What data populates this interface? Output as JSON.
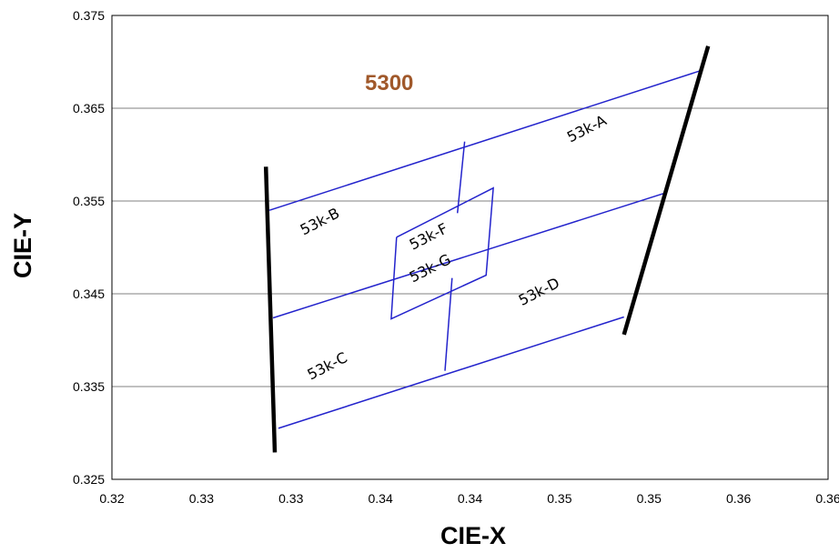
{
  "chart_data": {
    "type": "line",
    "title": "5300",
    "xlabel": "CIE-X",
    "ylabel": "CIE-Y",
    "xlim": [
      0.32,
      0.36
    ],
    "ylim": [
      0.325,
      0.375
    ],
    "x_tick_labels": [
      "0.32",
      "0.33",
      "0.33",
      "0.34",
      "0.34",
      "0.35",
      "0.35",
      "0.36",
      "0.36"
    ],
    "y_tick_labels": [
      "0.325",
      "0.335",
      "0.345",
      "0.355",
      "0.365",
      "0.375"
    ],
    "grid": "horizontal",
    "colors": {
      "title": "#a0582a",
      "bins": "#2323cc",
      "boundary": "#000000",
      "grid": "#808080"
    },
    "boundary_lines": [
      {
        "points": [
          [
            0.3286,
            0.3587
          ],
          [
            0.3291,
            0.3279
          ]
        ]
      },
      {
        "points": [
          [
            0.3533,
            0.3717
          ],
          [
            0.3486,
            0.3406
          ]
        ]
      }
    ],
    "bin_lines": [
      {
        "points": [
          [
            0.3288,
            0.354
          ],
          [
            0.3528,
            0.369
          ]
        ]
      },
      {
        "points": [
          [
            0.329,
            0.3424
          ],
          [
            0.3508,
            0.3558
          ]
        ]
      },
      {
        "points": [
          [
            0.3293,
            0.3305
          ],
          [
            0.3486,
            0.3425
          ]
        ]
      },
      {
        "points": [
          [
            0.3397,
            0.3614
          ],
          [
            0.3393,
            0.3537
          ]
        ]
      },
      {
        "points": [
          [
            0.339,
            0.3467
          ],
          [
            0.3386,
            0.3367
          ]
        ]
      },
      {
        "points": [
          [
            0.3359,
            0.3511
          ],
          [
            0.3413,
            0.3564
          ],
          [
            0.3409,
            0.347
          ],
          [
            0.3356,
            0.3423
          ],
          [
            0.3359,
            0.3511
          ]
        ]
      }
    ],
    "bin_labels": [
      {
        "text": "53k-A",
        "x": 0.3456,
        "y": 0.3613,
        "angle": -27
      },
      {
        "text": "53k-B",
        "x": 0.3307,
        "y": 0.3513,
        "angle": -27
      },
      {
        "text": "53k-F",
        "x": 0.3368,
        "y": 0.3497,
        "angle": -27
      },
      {
        "text": "53k-G",
        "x": 0.3368,
        "y": 0.3462,
        "angle": -27
      },
      {
        "text": "53k-D",
        "x": 0.3429,
        "y": 0.3437,
        "angle": -27
      },
      {
        "text": "53k-C",
        "x": 0.3311,
        "y": 0.3357,
        "angle": -27
      }
    ]
  }
}
